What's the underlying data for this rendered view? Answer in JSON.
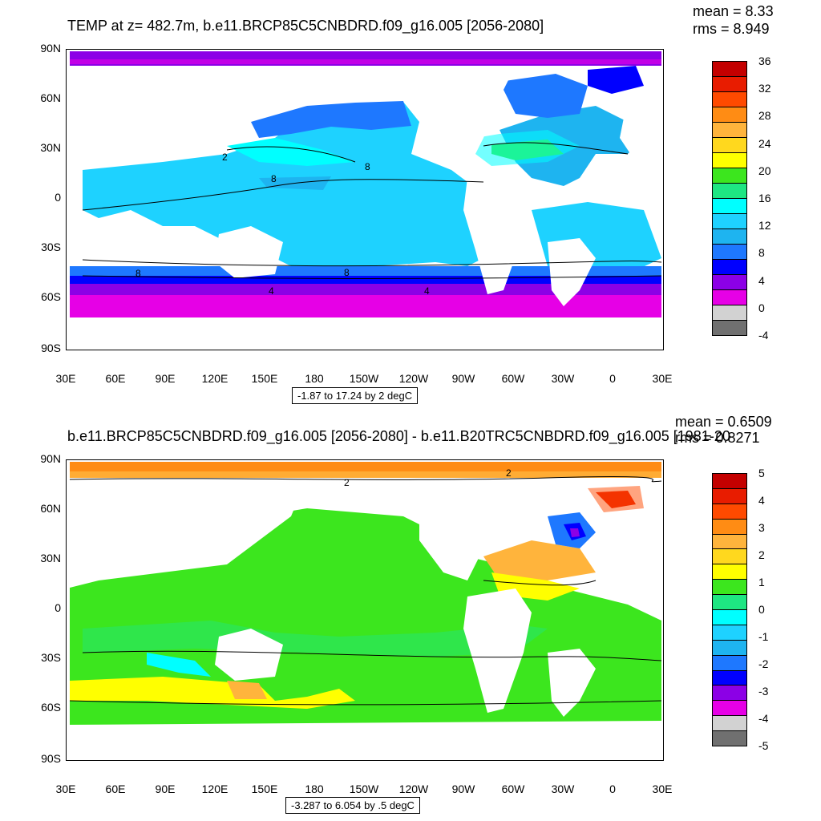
{
  "top": {
    "title": "TEMP at z= 482.7m, b.e11.BRCP85C5CNBDRD.f09_g16.005 [2056-2080]",
    "mean": "mean = 8.33",
    "rms": "rms = 8.949",
    "range_note": "-1.87 to 17.24 by 2 degC",
    "colorbar": {
      "labels": [
        "36",
        "32",
        "28",
        "24",
        "20",
        "16",
        "12",
        "8",
        "4",
        "0",
        "-4"
      ],
      "colors": [
        "#c40000",
        "#e81c00",
        "#ff4a00",
        "#ff8c14",
        "#ffb43c",
        "#ffd81e",
        "#ffff00",
        "#3ce61e",
        "#1ee682",
        "#00ffff",
        "#1ed2ff",
        "#1eb4f0",
        "#1e78ff",
        "#0000ff",
        "#8c00e6",
        "#e600e6",
        "#d2d2d2",
        "#707070"
      ]
    },
    "contour_labels": [
      "8",
      "8",
      "8",
      "8",
      "4",
      "4",
      "2"
    ]
  },
  "bottom": {
    "title": "b.e11.BRCP85C5CNBDRD.f09_g16.005 [2056-2080] - b.e11.B20TRC5CNBDRD.f09_g16.005 [1981-20",
    "mean": "mean = 0.6509",
    "rms": "rms = 0.8271",
    "range_note": "-3.287 to 6.054 by .5 degC",
    "colorbar": {
      "labels": [
        "5",
        "4",
        "3",
        "2",
        "1",
        "0",
        "-1",
        "-2",
        "-3",
        "-4",
        "-5"
      ],
      "colors": [
        "#c40000",
        "#e81c00",
        "#ff4a00",
        "#ff8c14",
        "#ffb43c",
        "#ffd81e",
        "#ffff00",
        "#3ce61e",
        "#1ee682",
        "#00ffff",
        "#1ed2ff",
        "#1eb4f0",
        "#1e78ff",
        "#0000ff",
        "#8c00e6",
        "#e600e6",
        "#d2d2d2",
        "#707070"
      ]
    },
    "contour_labels": [
      "2",
      "2"
    ]
  },
  "axes": {
    "y_labels": [
      "90N",
      "60N",
      "30N",
      "0",
      "30S",
      "60S",
      "90S"
    ],
    "x_labels": [
      "30E",
      "60E",
      "90E",
      "120E",
      "150E",
      "180",
      "150W",
      "120W",
      "90W",
      "60W",
      "30W",
      "0",
      "30E"
    ]
  }
}
